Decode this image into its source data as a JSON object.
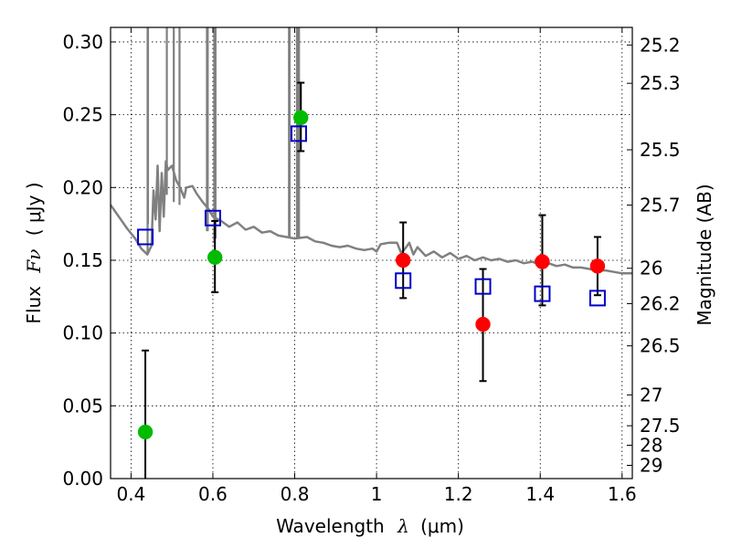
{
  "chart_data": {
    "type": "scatter",
    "title": "",
    "xlabel_text": "Wavelength",
    "xlabel_symbol": "λ",
    "xlabel_unit": "(μm)",
    "ylabel_text": "Flux",
    "ylabel_symbol": "Fν",
    "ylabel_unit": "( μJy )",
    "y2label": "Magnitude (AB)",
    "xlim": [
      0.35,
      1.625
    ],
    "ylim": [
      0.0,
      0.31
    ],
    "grid": true,
    "x_ticks": [
      {
        "value": 0.4,
        "label": "0.4"
      },
      {
        "value": 0.6,
        "label": "0.6"
      },
      {
        "value": 0.8,
        "label": "0.8"
      },
      {
        "value": 1.0,
        "label": "1"
      },
      {
        "value": 1.2,
        "label": "1.2"
      },
      {
        "value": 1.4,
        "label": "1.4"
      },
      {
        "value": 1.6,
        "label": "1.6"
      }
    ],
    "y_ticks": [
      {
        "value": 0.0,
        "label": "0.00"
      },
      {
        "value": 0.05,
        "label": "0.05"
      },
      {
        "value": 0.1,
        "label": "0.10"
      },
      {
        "value": 0.15,
        "label": "0.15"
      },
      {
        "value": 0.2,
        "label": "0.20"
      },
      {
        "value": 0.25,
        "label": "0.25"
      },
      {
        "value": 0.3,
        "label": "0.30"
      }
    ],
    "y2_ticks": [
      {
        "flux": 0.2979,
        "label": "25.2"
      },
      {
        "flux": 0.2716,
        "label": "25.3"
      },
      {
        "flux": 0.2259,
        "label": "25.5"
      },
      {
        "flux": 0.1879,
        "label": "25.7"
      },
      {
        "flux": 0.1445,
        "label": "26"
      },
      {
        "flux": 0.1202,
        "label": "26.2"
      },
      {
        "flux": 0.0912,
        "label": "26.5"
      },
      {
        "flux": 0.0575,
        "label": "27"
      },
      {
        "flux": 0.0363,
        "label": "27.5"
      },
      {
        "flux": 0.0229,
        "label": "28"
      },
      {
        "flux": 0.0091,
        "label": "29"
      }
    ],
    "series": [
      {
        "type": "line",
        "color": "#808080",
        "points": [
          [
            0.35,
            0.188
          ],
          [
            0.37,
            0.18
          ],
          [
            0.39,
            0.172
          ],
          [
            0.41,
            0.165
          ],
          [
            0.425,
            0.158
          ],
          [
            0.44,
            0.154
          ],
          [
            0.45,
            0.16
          ],
          [
            0.455,
            0.198
          ],
          [
            0.46,
            0.178
          ],
          [
            0.465,
            0.215
          ],
          [
            0.47,
            0.17
          ],
          [
            0.475,
            0.21
          ],
          [
            0.48,
            0.18
          ],
          [
            0.485,
            0.218
          ],
          [
            0.49,
            0.212
          ],
          [
            0.5,
            0.215
          ],
          [
            0.51,
            0.205
          ],
          [
            0.52,
            0.2
          ],
          [
            0.53,
            0.193
          ],
          [
            0.535,
            0.2
          ],
          [
            0.55,
            0.201
          ],
          [
            0.56,
            0.196
          ],
          [
            0.575,
            0.19
          ],
          [
            0.59,
            0.185
          ],
          [
            0.6,
            0.18
          ],
          [
            0.62,
            0.177
          ],
          [
            0.64,
            0.173
          ],
          [
            0.66,
            0.176
          ],
          [
            0.68,
            0.171
          ],
          [
            0.7,
            0.173
          ],
          [
            0.72,
            0.169
          ],
          [
            0.74,
            0.17
          ],
          [
            0.76,
            0.167
          ],
          [
            0.78,
            0.166
          ],
          [
            0.8,
            0.165
          ],
          [
            0.83,
            0.166
          ],
          [
            0.85,
            0.163
          ],
          [
            0.87,
            0.162
          ],
          [
            0.89,
            0.16
          ],
          [
            0.91,
            0.159
          ],
          [
            0.93,
            0.16
          ],
          [
            0.95,
            0.158
          ],
          [
            0.97,
            0.157
          ],
          [
            0.99,
            0.158
          ],
          [
            1.0,
            0.156
          ],
          [
            1.01,
            0.161
          ],
          [
            1.03,
            0.162
          ],
          [
            1.05,
            0.162
          ],
          [
            1.06,
            0.155
          ],
          [
            1.07,
            0.158
          ],
          [
            1.08,
            0.162
          ],
          [
            1.09,
            0.154
          ],
          [
            1.1,
            0.159
          ],
          [
            1.12,
            0.153
          ],
          [
            1.14,
            0.156
          ],
          [
            1.16,
            0.152
          ],
          [
            1.18,
            0.155
          ],
          [
            1.2,
            0.151
          ],
          [
            1.22,
            0.153
          ],
          [
            1.24,
            0.15
          ],
          [
            1.26,
            0.152
          ],
          [
            1.28,
            0.15
          ],
          [
            1.3,
            0.151
          ],
          [
            1.32,
            0.149
          ],
          [
            1.34,
            0.15
          ],
          [
            1.36,
            0.148
          ],
          [
            1.38,
            0.149
          ],
          [
            1.4,
            0.147
          ],
          [
            1.42,
            0.148
          ],
          [
            1.44,
            0.146
          ],
          [
            1.46,
            0.147
          ],
          [
            1.48,
            0.145
          ],
          [
            1.5,
            0.145
          ],
          [
            1.52,
            0.144
          ],
          [
            1.54,
            0.143
          ],
          [
            1.56,
            0.143
          ],
          [
            1.58,
            0.142
          ],
          [
            1.6,
            0.141
          ],
          [
            1.625,
            0.141
          ]
        ]
      },
      {
        "type": "emission-lines",
        "color": "#808080",
        "lines": [
          [
            0.4405,
            0.155,
            0.31
          ],
          [
            0.4415,
            0.175,
            0.31
          ],
          [
            0.4875,
            0.195,
            0.31
          ],
          [
            0.5045,
            0.19,
            0.31
          ],
          [
            0.5185,
            0.188,
            0.31
          ],
          [
            0.5855,
            0.17,
            0.31
          ],
          [
            0.5875,
            0.17,
            0.31
          ],
          [
            0.6035,
            0.162,
            0.31
          ],
          [
            0.6065,
            0.165,
            0.31
          ],
          [
            0.786,
            0.166,
            0.31
          ],
          [
            0.7875,
            0.166,
            0.31
          ],
          [
            0.8055,
            0.165,
            0.31
          ],
          [
            0.8085,
            0.165,
            0.31
          ],
          [
            0.8105,
            0.165,
            0.31
          ]
        ]
      },
      {
        "type": "points",
        "marker": "circle",
        "color": "#00bb00",
        "x": [
          0.435,
          0.605,
          0.815
        ],
        "y": [
          0.032,
          0.152,
          0.248
        ],
        "yerr_low": [
          0.032,
          0.024,
          0.023
        ],
        "yerr_high": [
          0.056,
          0.025,
          0.024
        ]
      },
      {
        "type": "points",
        "marker": "circle",
        "color": "#ff0000",
        "x": [
          1.065,
          1.26,
          1.405,
          1.54
        ],
        "y": [
          0.15,
          0.106,
          0.149,
          0.146
        ],
        "yerr_low": [
          0.026,
          0.039,
          0.03,
          0.02
        ],
        "yerr_high": [
          0.026,
          0.038,
          0.032,
          0.02
        ]
      },
      {
        "type": "points",
        "marker": "square",
        "color": "#0000cc",
        "x": [
          0.435,
          0.6,
          0.81,
          1.065,
          1.26,
          1.405,
          1.54
        ],
        "y": [
          0.166,
          0.179,
          0.237,
          0.136,
          0.132,
          0.127,
          0.124
        ]
      }
    ]
  }
}
